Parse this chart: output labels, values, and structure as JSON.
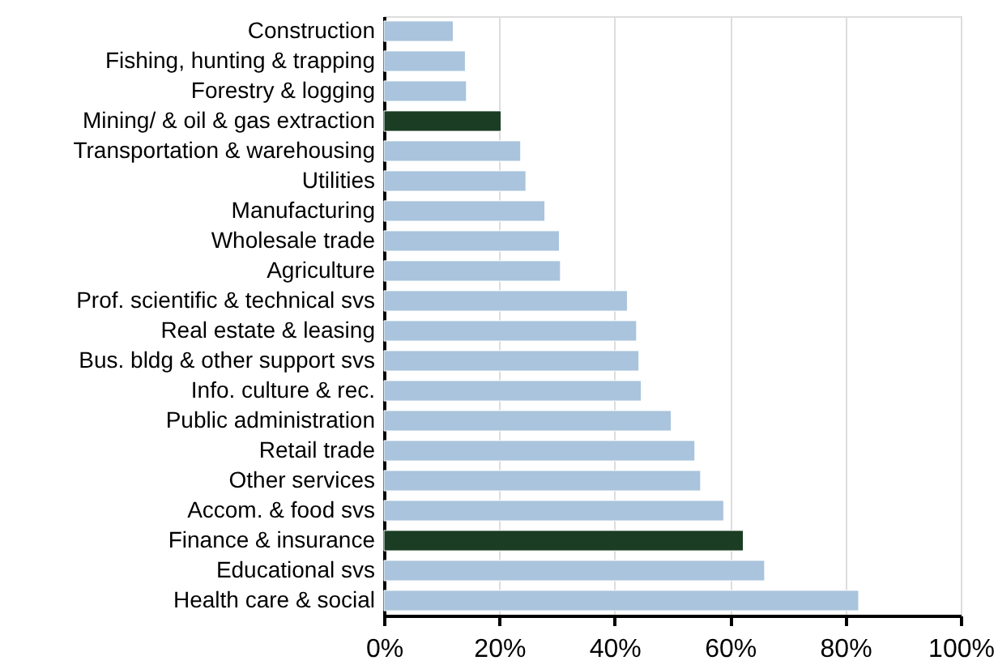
{
  "chart_data": {
    "type": "bar",
    "orientation": "horizontal",
    "categories": [
      "Construction",
      "Fishing, hunting & trapping ",
      "Forestry & logging",
      "Mining/ & oil & gas extraction ",
      "Transportation & warehousing",
      "Utilities",
      "Manufacturing ",
      "Wholesale trade",
      "Agriculture",
      "Prof. scientific & technical svs",
      "Real estate & leasing",
      "Bus. bldg & other support svs",
      "Info. culture & rec.",
      "Public administration",
      "Retail trade",
      "Other services",
      "Accom. & food svs",
      "Finance & insurance",
      "Educational svs",
      "Health care & social"
    ],
    "values": [
      12,
      14.1,
      14.3,
      20.3,
      23.7,
      24.6,
      27.9,
      30.4,
      30.6,
      42.2,
      43.8,
      44.2,
      44.6,
      49.8,
      53.9,
      54.9,
      58.9,
      62.3,
      66.0,
      82.3
    ],
    "colors": [
      "#a9c4dc",
      "#a9c4dc",
      "#a9c4dc",
      "#1a3d23",
      "#a9c4dc",
      "#a9c4dc",
      "#a9c4dc",
      "#a9c4dc",
      "#a9c4dc",
      "#a9c4dc",
      "#a9c4dc",
      "#a9c4dc",
      "#a9c4dc",
      "#a9c4dc",
      "#a9c4dc",
      "#a9c4dc",
      "#a9c4dc",
      "#1a3d23",
      "#a9c4dc",
      "#a9c4dc"
    ],
    "xlim": [
      0,
      100
    ],
    "xticks": [
      {
        "value": 0,
        "label": "0%"
      },
      {
        "value": 20,
        "label": "20%"
      },
      {
        "value": 40,
        "label": "40%"
      },
      {
        "value": 60,
        "label": "60%"
      },
      {
        "value": 80,
        "label": "80%"
      },
      {
        "value": 100,
        "label": "100%"
      }
    ],
    "grid": "x",
    "legend": false
  }
}
